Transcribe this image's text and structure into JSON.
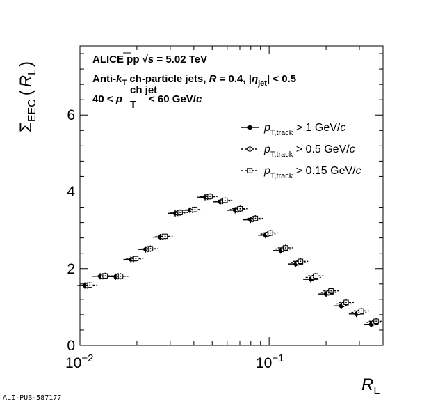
{
  "chart_data": {
    "type": "scatter",
    "x_scale": "log",
    "xlim": [
      0.01,
      0.4
    ],
    "ylim": [
      0,
      7.8
    ],
    "x_major_ticks": [
      0.01,
      0.1
    ],
    "x_tick_labels": {
      "base": "10",
      "exps": [
        "−2",
        "−1"
      ]
    },
    "y_ticks": [
      0,
      2,
      4,
      6
    ],
    "y_tick_labels": [
      "0",
      "2",
      "4",
      "6"
    ],
    "xlabel": {
      "main": "R",
      "sub": "L"
    },
    "ylabel": {
      "sigma": "Σ",
      "sub": "EEC",
      "lp": "(",
      "main": "R",
      "sub2": "L",
      "rp": ")"
    },
    "annotations": [
      {
        "parts": [
          "ALICE   pp  ",
          "√",
          "s",
          " = 5.02 TeV"
        ]
      },
      {
        "parts": [
          "Anti-",
          "k",
          "T",
          " ch-particle jets,  ",
          "R",
          " = 0.4, |",
          "η",
          "jet",
          "| < 0.5"
        ]
      },
      {
        "parts": [
          "40 <  ",
          "p",
          "ch jet",
          "T",
          "  < 60 GeV/",
          "c"
        ]
      }
    ],
    "bins": [
      [
        0.01,
        0.012
      ],
      [
        0.012,
        0.0145
      ],
      [
        0.0145,
        0.0175
      ],
      [
        0.0175,
        0.021
      ],
      [
        0.021,
        0.025
      ],
      [
        0.025,
        0.03
      ],
      [
        0.03,
        0.036
      ],
      [
        0.036,
        0.043
      ],
      [
        0.043,
        0.052
      ],
      [
        0.052,
        0.062
      ],
      [
        0.062,
        0.075
      ],
      [
        0.075,
        0.09
      ],
      [
        0.09,
        0.108
      ],
      [
        0.108,
        0.13
      ],
      [
        0.13,
        0.156
      ],
      [
        0.156,
        0.188
      ],
      [
        0.188,
        0.226
      ],
      [
        0.226,
        0.272
      ],
      [
        0.272,
        0.327
      ],
      [
        0.327,
        0.39
      ]
    ],
    "series": [
      {
        "name": "p_T,track > 1 GeV/c",
        "marker": "filled-circle",
        "offset": 0.97,
        "values": [
          1.56,
          1.8,
          1.79,
          2.24,
          2.5,
          2.82,
          3.44,
          3.52,
          3.86,
          3.74,
          3.52,
          3.27,
          2.87,
          2.47,
          2.12,
          1.72,
          1.34,
          1.03,
          0.82,
          0.55
        ]
      },
      {
        "name": "p_T,track > 0.5 GeV/c",
        "marker": "open-circle-dot",
        "offset": 1.0,
        "values": [
          1.56,
          1.8,
          1.8,
          2.25,
          2.51,
          2.83,
          3.45,
          3.53,
          3.87,
          3.76,
          3.54,
          3.29,
          2.9,
          2.51,
          2.16,
          1.77,
          1.38,
          1.08,
          0.86,
          0.6
        ]
      },
      {
        "name": "p_T,track > 0.15 GeV/c",
        "marker": "open-square-dot",
        "offset": 1.03,
        "values": [
          1.57,
          1.81,
          1.8,
          2.26,
          2.52,
          2.84,
          3.46,
          3.54,
          3.88,
          3.78,
          3.56,
          3.31,
          2.93,
          2.54,
          2.19,
          1.81,
          1.42,
          1.12,
          0.9,
          0.63
        ]
      }
    ],
    "legend": {
      "placement": "top-right",
      "entries": [
        {
          "sym": "p",
          "sub": "T,track",
          "rest": " > 1 GeV/",
          "unit": "c"
        },
        {
          "sym": "p",
          "sub": "T,track",
          "rest": " > 0.5 GeV/",
          "unit": "c"
        },
        {
          "sym": "p",
          "sub": "T,track",
          "rest": " > 0.15 GeV/",
          "unit": "c"
        }
      ]
    }
  },
  "footer": "ALI-PUB-587177"
}
